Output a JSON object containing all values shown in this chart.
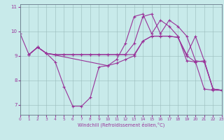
{
  "xlabel": "Windchill (Refroidissement éolien,°C)",
  "bg_color": "#c8eaea",
  "line_color": "#993399",
  "grid_color": "#99bbbb",
  "xlim": [
    0,
    23
  ],
  "ylim": [
    6.6,
    11.1
  ],
  "yticks": [
    7,
    8,
    9,
    10,
    11
  ],
  "xticks": [
    0,
    1,
    2,
    3,
    4,
    5,
    6,
    7,
    8,
    9,
    10,
    11,
    12,
    13,
    14,
    15,
    16,
    17,
    18,
    19,
    20,
    21,
    22,
    23
  ],
  "lines": [
    {
      "x": [
        0,
        1,
        2,
        3,
        4,
        5,
        6,
        7,
        8,
        9,
        10,
        11,
        12,
        13,
        14,
        15,
        16,
        17,
        18,
        19,
        20,
        21,
        22,
        23
      ],
      "y": [
        9.9,
        9.05,
        9.35,
        9.1,
        8.75,
        7.75,
        6.95,
        6.95,
        7.3,
        8.55,
        8.6,
        8.85,
        9.5,
        10.6,
        10.7,
        9.9,
        10.45,
        10.2,
        9.8,
        8.8,
        8.75,
        7.65,
        7.6,
        7.6
      ]
    },
    {
      "x": [
        1,
        2,
        3,
        4,
        5,
        6,
        7,
        8,
        9,
        10,
        11,
        12,
        13,
        14,
        15,
        16,
        17,
        18,
        19,
        20,
        21,
        22,
        23
      ],
      "y": [
        9.05,
        9.35,
        9.1,
        9.05,
        9.05,
        9.05,
        9.05,
        9.05,
        9.05,
        9.05,
        9.05,
        9.05,
        9.05,
        9.6,
        9.8,
        9.8,
        9.8,
        9.75,
        9.05,
        9.8,
        8.8,
        7.65,
        7.6
      ]
    },
    {
      "x": [
        1,
        2,
        3,
        4,
        5,
        6,
        7,
        8,
        9,
        10,
        11,
        12,
        13,
        14,
        15,
        16,
        17,
        18,
        19,
        20,
        21,
        22,
        23
      ],
      "y": [
        9.05,
        9.35,
        9.1,
        9.05,
        9.05,
        9.05,
        9.05,
        9.05,
        9.05,
        9.05,
        9.05,
        9.05,
        9.5,
        10.6,
        10.7,
        9.9,
        10.45,
        10.2,
        9.8,
        8.8,
        8.75,
        7.65,
        7.6
      ]
    },
    {
      "x": [
        1,
        2,
        3,
        10,
        11,
        12,
        13,
        14,
        15,
        16,
        17,
        18,
        19,
        20,
        21,
        22,
        23
      ],
      "y": [
        9.05,
        9.35,
        9.1,
        8.6,
        8.7,
        8.85,
        9.0,
        9.6,
        9.8,
        9.8,
        9.8,
        9.75,
        9.0,
        8.75,
        8.8,
        7.65,
        7.6
      ]
    }
  ]
}
